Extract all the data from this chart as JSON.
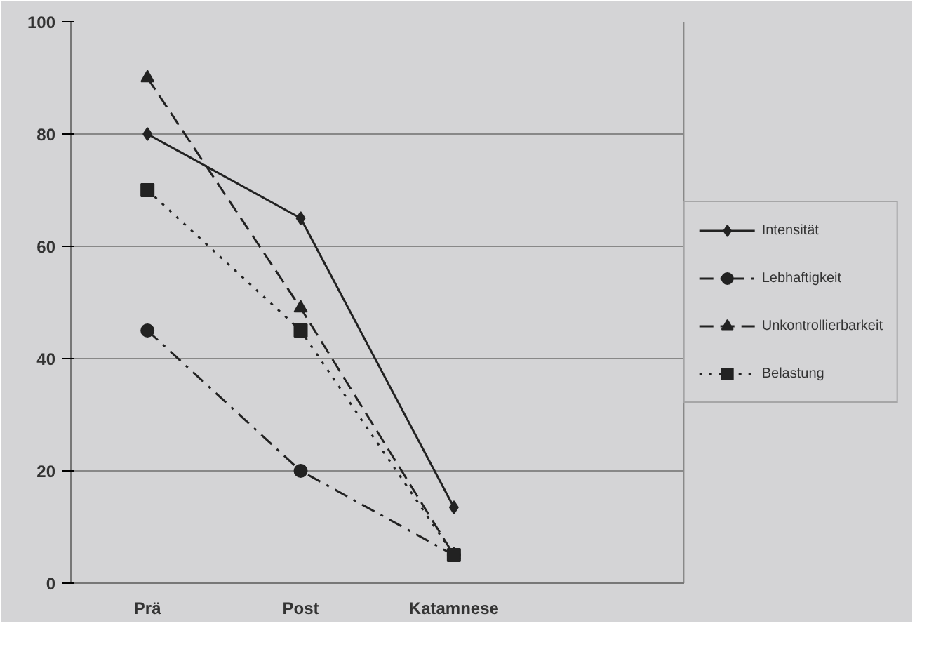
{
  "chart_data": {
    "type": "line",
    "categories": [
      "Prä",
      "Post",
      "Katamnese",
      null
    ],
    "series": [
      {
        "name": "Intensität",
        "color": "#222222",
        "values": [
          80,
          65,
          13.5,
          null
        ],
        "marker": "diamond",
        "line_style": "solid"
      },
      {
        "name": "Lebhaftigkeit",
        "color": "#222222",
        "values": [
          45,
          20,
          5,
          null
        ],
        "marker": "circle",
        "line_style": "dashdot"
      },
      {
        "name": "Unkontrollierbarkeit",
        "color": "#222222",
        "values": [
          90,
          49,
          5,
          null
        ],
        "marker": "triangle",
        "line_style": "dashed"
      },
      {
        "name": "Belastung",
        "color": "#222222",
        "values": [
          70,
          45,
          5,
          null
        ],
        "marker": "square",
        "line_style": "dotted"
      }
    ],
    "ylim": [
      0,
      100
    ],
    "yticks": [
      0,
      20,
      40,
      60,
      80,
      100
    ],
    "grid": "y",
    "legend": "right"
  }
}
